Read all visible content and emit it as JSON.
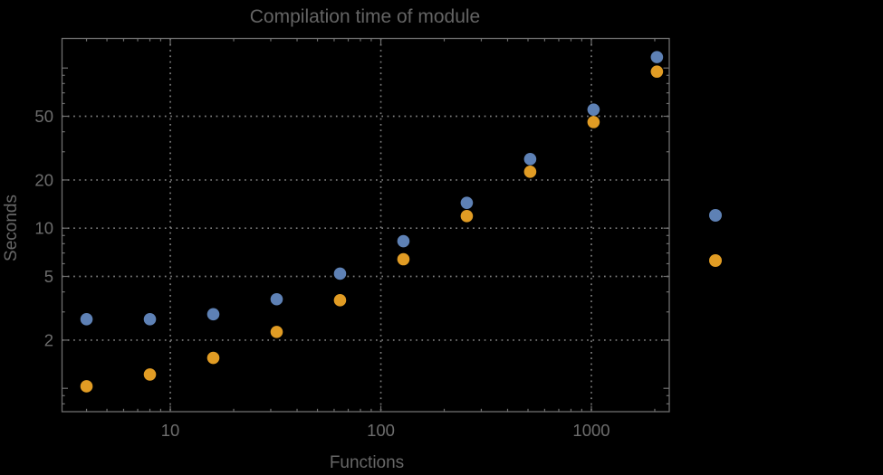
{
  "chart_data": {
    "type": "scatter",
    "title": "Compilation time of module",
    "xlabel": "Functions",
    "ylabel": "Seconds",
    "xscale": "log",
    "yscale": "log",
    "xlim": [
      3.06,
      2344
    ],
    "ylim": [
      0.715,
      153
    ],
    "grid": true,
    "x_ticks": {
      "labeled_values": [
        10,
        100,
        1000
      ],
      "labels": [
        "10",
        "100",
        "1000"
      ]
    },
    "y_ticks": {
      "labeled_values": [
        2,
        5,
        10,
        20,
        50
      ],
      "labels": [
        "2",
        "5",
        "10",
        "20",
        "50"
      ],
      "unlabeled_major_values": [
        1,
        100
      ]
    },
    "x": [
      4,
      8,
      16,
      32,
      64,
      128,
      256,
      512,
      1024,
      2048
    ],
    "series": [
      {
        "name": "series-1",
        "color": "#5E81B5",
        "values": [
          2.7,
          2.7,
          2.9,
          3.6,
          5.2,
          8.3,
          14.4,
          27,
          55,
          117
        ]
      },
      {
        "name": "series-2",
        "color": "#E19C24",
        "values": [
          1.03,
          1.22,
          1.55,
          2.25,
          3.55,
          6.4,
          11.9,
          22.5,
          46,
          95
        ]
      }
    ],
    "legend": {
      "position": "right-outside",
      "markers_only": true,
      "entries": [
        {
          "label": "",
          "color": "#5E81B5"
        },
        {
          "label": "",
          "color": "#E19C24"
        }
      ]
    },
    "colors": {
      "background": "#000000",
      "frame": "#6f6f6f",
      "grid": "#7e7e7e",
      "text": "#6a6a6a"
    }
  }
}
